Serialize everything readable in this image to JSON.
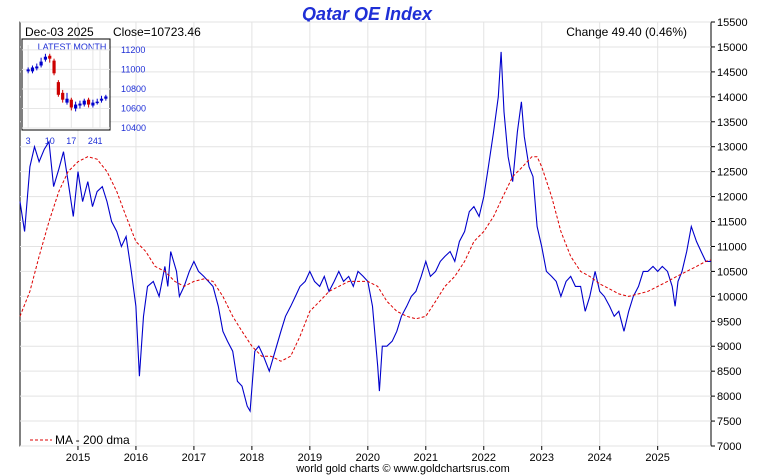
{
  "chart_data": {
    "type": "line",
    "title": "Qatar QE Index",
    "date_label": "Dec-03  2025",
    "close_label": "Close=10723.46",
    "change_label": "Change 49.40 (0.46%)",
    "footer": "world gold charts © www.goldchartsrus.com",
    "legend": "MA - 200 dma",
    "legend_position": "bottom-left",
    "grid": true,
    "x_range": [
      2014.0,
      2025.92
    ],
    "ylim": [
      7000,
      15500
    ],
    "x_ticks": [
      "2015",
      "2016",
      "2017",
      "2018",
      "2019",
      "2020",
      "2021",
      "2022",
      "2023",
      "2024",
      "2025"
    ],
    "y_ticks": [
      "15500",
      "15000",
      "14500",
      "14000",
      "13500",
      "13000",
      "12500",
      "12000",
      "11500",
      "11000",
      "10500",
      "10000",
      "9500",
      "9000",
      "8500",
      "8000",
      "7500",
      "7000"
    ],
    "series": [
      {
        "name": "",
        "color": "#0000cc",
        "points": [
          [
            2014.0,
            11900
          ],
          [
            2014.08,
            11300
          ],
          [
            2014.17,
            12600
          ],
          [
            2014.25,
            13000
          ],
          [
            2014.33,
            12700
          ],
          [
            2014.42,
            12950
          ],
          [
            2014.5,
            13100
          ],
          [
            2014.58,
            12200
          ],
          [
            2014.67,
            12550
          ],
          [
            2014.75,
            12900
          ],
          [
            2014.83,
            12300
          ],
          [
            2014.92,
            11600
          ],
          [
            2015.0,
            12500
          ],
          [
            2015.08,
            11900
          ],
          [
            2015.17,
            12300
          ],
          [
            2015.25,
            11800
          ],
          [
            2015.33,
            12100
          ],
          [
            2015.42,
            12200
          ],
          [
            2015.5,
            11900
          ],
          [
            2015.58,
            11500
          ],
          [
            2015.67,
            11300
          ],
          [
            2015.75,
            11000
          ],
          [
            2015.83,
            11200
          ],
          [
            2015.92,
            10500
          ],
          [
            2016.0,
            9800
          ],
          [
            2016.06,
            8400
          ],
          [
            2016.13,
            9600
          ],
          [
            2016.2,
            10200
          ],
          [
            2016.3,
            10300
          ],
          [
            2016.4,
            10000
          ],
          [
            2016.5,
            10600
          ],
          [
            2016.55,
            10200
          ],
          [
            2016.6,
            10900
          ],
          [
            2016.7,
            10500
          ],
          [
            2016.75,
            10000
          ],
          [
            2016.83,
            10200
          ],
          [
            2016.92,
            10500
          ],
          [
            2017.0,
            10700
          ],
          [
            2017.08,
            10500
          ],
          [
            2017.17,
            10400
          ],
          [
            2017.25,
            10300
          ],
          [
            2017.33,
            10200
          ],
          [
            2017.42,
            9800
          ],
          [
            2017.5,
            9300
          ],
          [
            2017.58,
            9100
          ],
          [
            2017.67,
            8900
          ],
          [
            2017.75,
            8300
          ],
          [
            2017.83,
            8200
          ],
          [
            2017.92,
            7800
          ],
          [
            2017.97,
            7700
          ],
          [
            2018.05,
            8900
          ],
          [
            2018.12,
            9000
          ],
          [
            2018.2,
            8800
          ],
          [
            2018.3,
            8500
          ],
          [
            2018.4,
            8900
          ],
          [
            2018.5,
            9300
          ],
          [
            2018.58,
            9600
          ],
          [
            2018.67,
            9800
          ],
          [
            2018.75,
            10000
          ],
          [
            2018.83,
            10200
          ],
          [
            2018.92,
            10300
          ],
          [
            2019.0,
            10500
          ],
          [
            2019.08,
            10300
          ],
          [
            2019.17,
            10200
          ],
          [
            2019.25,
            10400
          ],
          [
            2019.33,
            10100
          ],
          [
            2019.42,
            10300
          ],
          [
            2019.5,
            10500
          ],
          [
            2019.58,
            10300
          ],
          [
            2019.67,
            10400
          ],
          [
            2019.75,
            10200
          ],
          [
            2019.83,
            10500
          ],
          [
            2019.92,
            10400
          ],
          [
            2020.0,
            10300
          ],
          [
            2020.08,
            9800
          ],
          [
            2020.17,
            8600
          ],
          [
            2020.2,
            8100
          ],
          [
            2020.25,
            9000
          ],
          [
            2020.33,
            9000
          ],
          [
            2020.42,
            9100
          ],
          [
            2020.5,
            9300
          ],
          [
            2020.58,
            9600
          ],
          [
            2020.67,
            9800
          ],
          [
            2020.75,
            10000
          ],
          [
            2020.83,
            10100
          ],
          [
            2020.92,
            10400
          ],
          [
            2021.0,
            10700
          ],
          [
            2021.08,
            10400
          ],
          [
            2021.17,
            10500
          ],
          [
            2021.25,
            10700
          ],
          [
            2021.33,
            10800
          ],
          [
            2021.42,
            10900
          ],
          [
            2021.5,
            10700
          ],
          [
            2021.58,
            11100
          ],
          [
            2021.67,
            11300
          ],
          [
            2021.75,
            11700
          ],
          [
            2021.83,
            11800
          ],
          [
            2021.92,
            11600
          ],
          [
            2022.0,
            12000
          ],
          [
            2022.08,
            12600
          ],
          [
            2022.17,
            13300
          ],
          [
            2022.25,
            14000
          ],
          [
            2022.3,
            14900
          ],
          [
            2022.35,
            13700
          ],
          [
            2022.42,
            12800
          ],
          [
            2022.5,
            12300
          ],
          [
            2022.58,
            13300
          ],
          [
            2022.65,
            13900
          ],
          [
            2022.7,
            13200
          ],
          [
            2022.78,
            12600
          ],
          [
            2022.85,
            12400
          ],
          [
            2022.92,
            11400
          ],
          [
            2023.0,
            11000
          ],
          [
            2023.08,
            10500
          ],
          [
            2023.17,
            10400
          ],
          [
            2023.25,
            10300
          ],
          [
            2023.33,
            10000
          ],
          [
            2023.42,
            10300
          ],
          [
            2023.5,
            10400
          ],
          [
            2023.58,
            10200
          ],
          [
            2023.67,
            10200
          ],
          [
            2023.75,
            9700
          ],
          [
            2023.83,
            10000
          ],
          [
            2023.92,
            10500
          ],
          [
            2024.0,
            10100
          ],
          [
            2024.08,
            10000
          ],
          [
            2024.17,
            9800
          ],
          [
            2024.25,
            9600
          ],
          [
            2024.33,
            9700
          ],
          [
            2024.42,
            9300
          ],
          [
            2024.5,
            9700
          ],
          [
            2024.58,
            10000
          ],
          [
            2024.67,
            10200
          ],
          [
            2024.75,
            10500
          ],
          [
            2024.83,
            10500
          ],
          [
            2024.92,
            10600
          ],
          [
            2025.0,
            10500
          ],
          [
            2025.08,
            10600
          ],
          [
            2025.17,
            10500
          ],
          [
            2025.25,
            10200
          ],
          [
            2025.3,
            9800
          ],
          [
            2025.35,
            10300
          ],
          [
            2025.42,
            10500
          ],
          [
            2025.5,
            10900
          ],
          [
            2025.58,
            11400
          ],
          [
            2025.67,
            11100
          ],
          [
            2025.75,
            10900
          ],
          [
            2025.83,
            10700
          ],
          [
            2025.92,
            10700
          ]
        ]
      },
      {
        "name": "MA - 200 dma",
        "color": "#dd0000",
        "dashed": true,
        "points": [
          [
            2014.0,
            9600
          ],
          [
            2014.17,
            10100
          ],
          [
            2014.33,
            10800
          ],
          [
            2014.5,
            11500
          ],
          [
            2014.67,
            12100
          ],
          [
            2014.83,
            12500
          ],
          [
            2015.0,
            12700
          ],
          [
            2015.17,
            12800
          ],
          [
            2015.33,
            12750
          ],
          [
            2015.5,
            12500
          ],
          [
            2015.67,
            12100
          ],
          [
            2015.83,
            11600
          ],
          [
            2016.0,
            11100
          ],
          [
            2016.17,
            10900
          ],
          [
            2016.33,
            10600
          ],
          [
            2016.5,
            10500
          ],
          [
            2016.67,
            10300
          ],
          [
            2016.83,
            10200
          ],
          [
            2017.0,
            10300
          ],
          [
            2017.17,
            10350
          ],
          [
            2017.33,
            10300
          ],
          [
            2017.5,
            10000
          ],
          [
            2017.67,
            9600
          ],
          [
            2017.83,
            9300
          ],
          [
            2018.0,
            9000
          ],
          [
            2018.17,
            8800
          ],
          [
            2018.33,
            8800
          ],
          [
            2018.5,
            8700
          ],
          [
            2018.67,
            8800
          ],
          [
            2018.83,
            9200
          ],
          [
            2019.0,
            9700
          ],
          [
            2019.17,
            9900
          ],
          [
            2019.33,
            10100
          ],
          [
            2019.5,
            10200
          ],
          [
            2019.67,
            10300
          ],
          [
            2019.83,
            10300
          ],
          [
            2020.0,
            10300
          ],
          [
            2020.17,
            10200
          ],
          [
            2020.33,
            9900
          ],
          [
            2020.5,
            9700
          ],
          [
            2020.67,
            9600
          ],
          [
            2020.83,
            9550
          ],
          [
            2021.0,
            9600
          ],
          [
            2021.17,
            9900
          ],
          [
            2021.33,
            10200
          ],
          [
            2021.5,
            10400
          ],
          [
            2021.67,
            10700
          ],
          [
            2021.83,
            11100
          ],
          [
            2022.0,
            11300
          ],
          [
            2022.17,
            11600
          ],
          [
            2022.33,
            12000
          ],
          [
            2022.5,
            12400
          ],
          [
            2022.67,
            12600
          ],
          [
            2022.83,
            12800
          ],
          [
            2022.92,
            12800
          ],
          [
            2023.0,
            12600
          ],
          [
            2023.17,
            12000
          ],
          [
            2023.33,
            11300
          ],
          [
            2023.5,
            10800
          ],
          [
            2023.67,
            10500
          ],
          [
            2023.83,
            10400
          ],
          [
            2024.0,
            10250
          ],
          [
            2024.17,
            10150
          ],
          [
            2024.33,
            10050
          ],
          [
            2024.5,
            10000
          ],
          [
            2024.67,
            10050
          ],
          [
            2024.83,
            10100
          ],
          [
            2025.0,
            10200
          ],
          [
            2025.17,
            10300
          ],
          [
            2025.33,
            10400
          ],
          [
            2025.5,
            10500
          ],
          [
            2025.67,
            10600
          ],
          [
            2025.83,
            10700
          ],
          [
            2025.92,
            10730
          ]
        ]
      }
    ],
    "inset": {
      "title": "LATEST MONTH",
      "x_ticks": [
        "3",
        "10",
        "17",
        "24",
        "1"
      ],
      "y_ticks": [
        "11200",
        "11000",
        "10800",
        "10600",
        "10400"
      ],
      "ylim": [
        10400,
        11250
      ],
      "candles": [
        {
          "open": 10980,
          "close": 11000,
          "high": 11020,
          "low": 10960,
          "color": "#0000cc"
        },
        {
          "open": 10980,
          "close": 11020,
          "high": 11040,
          "low": 10960,
          "color": "#0000cc"
        },
        {
          "open": 11010,
          "close": 11030,
          "high": 11060,
          "low": 10990,
          "color": "#0000cc"
        },
        {
          "open": 11040,
          "close": 11080,
          "high": 11120,
          "low": 11020,
          "color": "#0000cc"
        },
        {
          "open": 11100,
          "close": 11130,
          "high": 11160,
          "low": 11080,
          "color": "#0000cc"
        },
        {
          "open": 11140,
          "close": 11110,
          "high": 11160,
          "low": 11070,
          "color": "#cc0000"
        },
        {
          "open": 11090,
          "close": 10960,
          "high": 11110,
          "low": 10940,
          "color": "#cc0000"
        },
        {
          "open": 10870,
          "close": 10740,
          "high": 10890,
          "low": 10720,
          "color": "#cc0000"
        },
        {
          "open": 10760,
          "close": 10690,
          "high": 10790,
          "low": 10660,
          "color": "#cc0000"
        },
        {
          "open": 10660,
          "close": 10700,
          "high": 10760,
          "low": 10640,
          "color": "#0000cc"
        },
        {
          "open": 10690,
          "close": 10610,
          "high": 10710,
          "low": 10580,
          "color": "#cc0000"
        },
        {
          "open": 10600,
          "close": 10640,
          "high": 10670,
          "low": 10570,
          "color": "#0000cc"
        },
        {
          "open": 10630,
          "close": 10650,
          "high": 10680,
          "low": 10600,
          "color": "#0000cc"
        },
        {
          "open": 10640,
          "close": 10680,
          "high": 10700,
          "low": 10620,
          "color": "#0000cc"
        },
        {
          "open": 10690,
          "close": 10640,
          "high": 10710,
          "low": 10610,
          "color": "#cc0000"
        },
        {
          "open": 10630,
          "close": 10660,
          "high": 10690,
          "low": 10610,
          "color": "#0000cc"
        },
        {
          "open": 10660,
          "close": 10670,
          "high": 10700,
          "low": 10640,
          "color": "#0000cc"
        },
        {
          "open": 10680,
          "close": 10700,
          "high": 10730,
          "low": 10660,
          "color": "#0000cc"
        },
        {
          "open": 10700,
          "close": 10723,
          "high": 10740,
          "low": 10680,
          "color": "#0000cc"
        }
      ]
    }
  }
}
